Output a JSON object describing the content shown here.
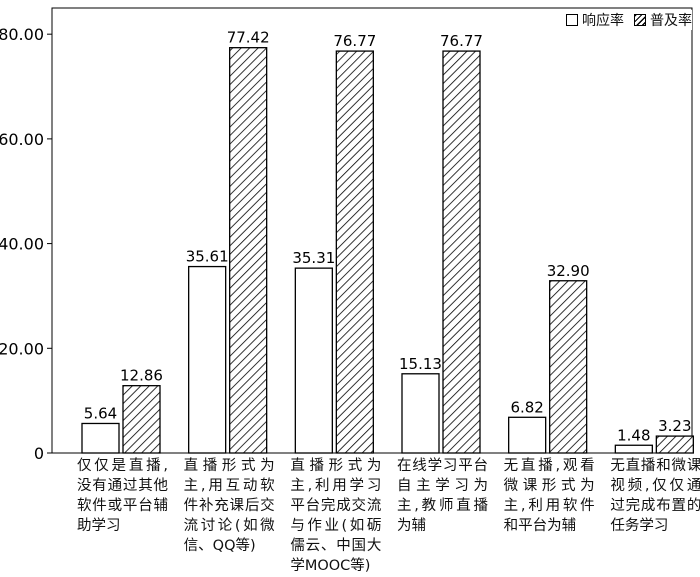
{
  "chart_data": {
    "type": "bar",
    "categories": [
      "仅仅是直播,没有通过其他软件或平台辅助学习",
      "直播形式为主,用互动软件补充课后交流讨论(如微信、QQ等)",
      "直播形式为主,利用学习平台完成交流与作业(如砺儒云、中国大学MOOC等)",
      "在线学习平台自主学习为主,教师直播为辅",
      "无直播,观看微课形式为主,利用软件和平台为辅",
      "无直播和微课视频,仅仅通过完成布置的任务学习"
    ],
    "series": [
      {
        "name": "响应率",
        "values": [
          5.64,
          35.61,
          35.31,
          15.13,
          6.82,
          1.48
        ],
        "fill": "none"
      },
      {
        "name": "普及率",
        "values": [
          12.86,
          77.42,
          76.77,
          76.77,
          32.9,
          3.23
        ],
        "fill": "hatch"
      }
    ],
    "value_labels": [
      [
        "5.64",
        "35.61",
        "35.31",
        "15.13",
        "6.82",
        "1.48"
      ],
      [
        "12.86",
        "77.42",
        "76.77",
        "76.77",
        "32.90",
        "3.23"
      ]
    ],
    "ylim": [
      0,
      85
    ],
    "yticks": [
      0,
      20,
      40,
      60,
      80
    ],
    "ytick_labels": [
      "0",
      "20.00",
      "40.00",
      "60.00",
      "80.00"
    ],
    "xlabel": "",
    "ylabel": "",
    "legend_position": "top-right",
    "grid": false
  }
}
